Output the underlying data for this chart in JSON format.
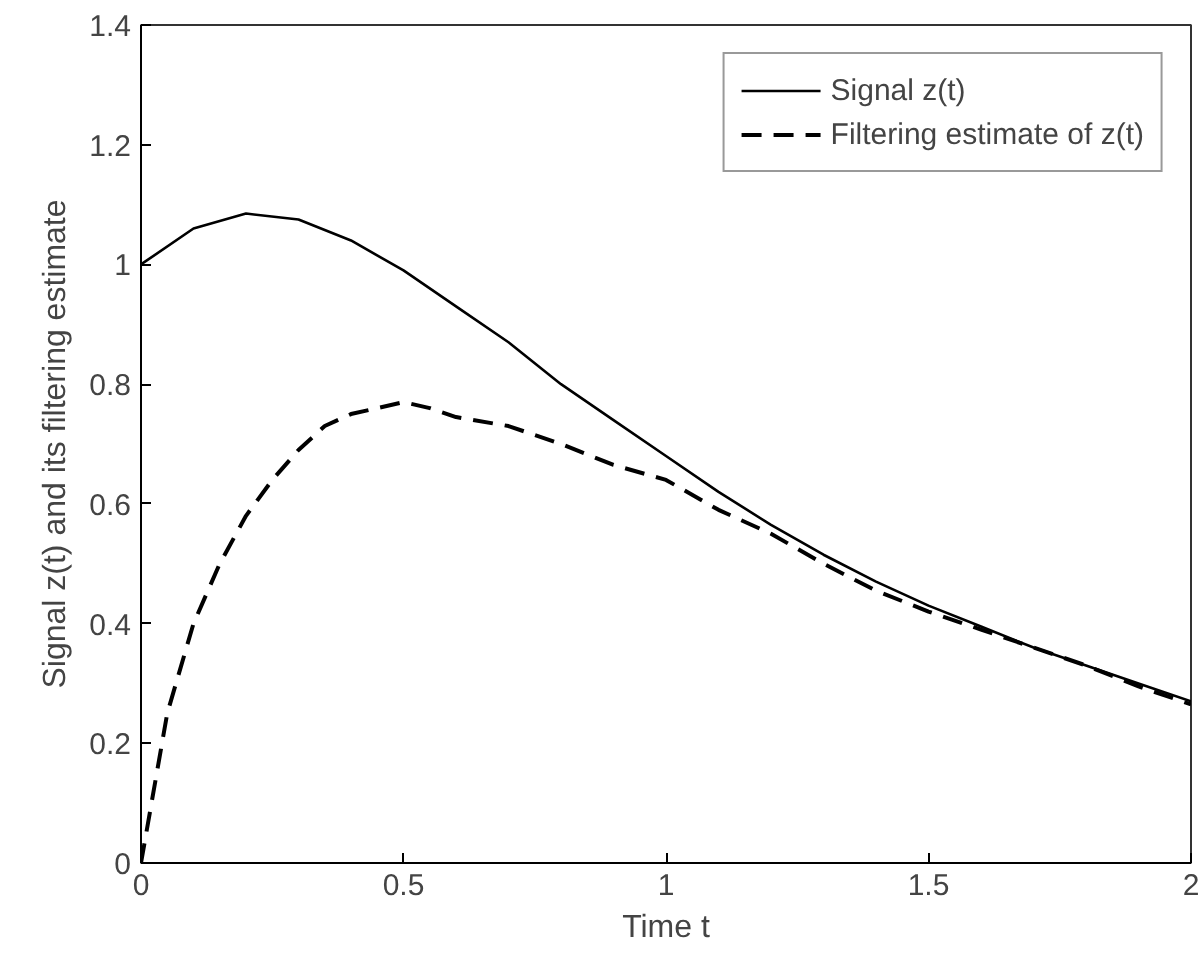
{
  "chart_data": {
    "type": "line",
    "xlabel": "Time t",
    "ylabel": "Signal z(t) and its filtering estimate",
    "xlim": [
      0,
      2
    ],
    "xticks": [
      0,
      0.5,
      1,
      1.5,
      2
    ],
    "ylim": [
      0,
      1.4
    ],
    "yticks": [
      0,
      0.2,
      0.4,
      0.6,
      0.8,
      1,
      1.2,
      1.4
    ],
    "grid": false,
    "legend": "top right",
    "marker": "none",
    "series": [
      {
        "name": "Signal z(t)",
        "color": "#000000",
        "line_style": "solid",
        "x": [
          0,
          0.1,
          0.2,
          0.3,
          0.4,
          0.5,
          0.6,
          0.7,
          0.8,
          0.9,
          1.0,
          1.1,
          1.2,
          1.3,
          1.4,
          1.5,
          1.6,
          1.7,
          1.8,
          1.9,
          2.0
        ],
        "values": [
          1.0,
          1.06,
          1.085,
          1.075,
          1.04,
          0.99,
          0.93,
          0.87,
          0.8,
          0.74,
          0.68,
          0.62,
          0.565,
          0.515,
          0.47,
          0.43,
          0.395,
          0.36,
          0.33,
          0.3,
          0.27
        ]
      },
      {
        "name": "Filtering estimate of z(t)",
        "color": "#000000",
        "line_style": "dashed",
        "x": [
          0,
          0.02,
          0.05,
          0.1,
          0.15,
          0.2,
          0.25,
          0.3,
          0.35,
          0.4,
          0.45,
          0.5,
          0.55,
          0.6,
          0.7,
          0.8,
          0.9,
          1.0,
          1.1,
          1.2,
          1.3,
          1.4,
          1.5,
          1.6,
          1.7,
          1.8,
          1.9,
          2.0
        ],
        "values": [
          0,
          0.1,
          0.25,
          0.4,
          0.5,
          0.58,
          0.64,
          0.69,
          0.73,
          0.75,
          0.76,
          0.77,
          0.76,
          0.745,
          0.73,
          0.7,
          0.665,
          0.64,
          0.59,
          0.55,
          0.5,
          0.455,
          0.42,
          0.39,
          0.36,
          0.33,
          0.295,
          0.265
        ]
      }
    ]
  }
}
